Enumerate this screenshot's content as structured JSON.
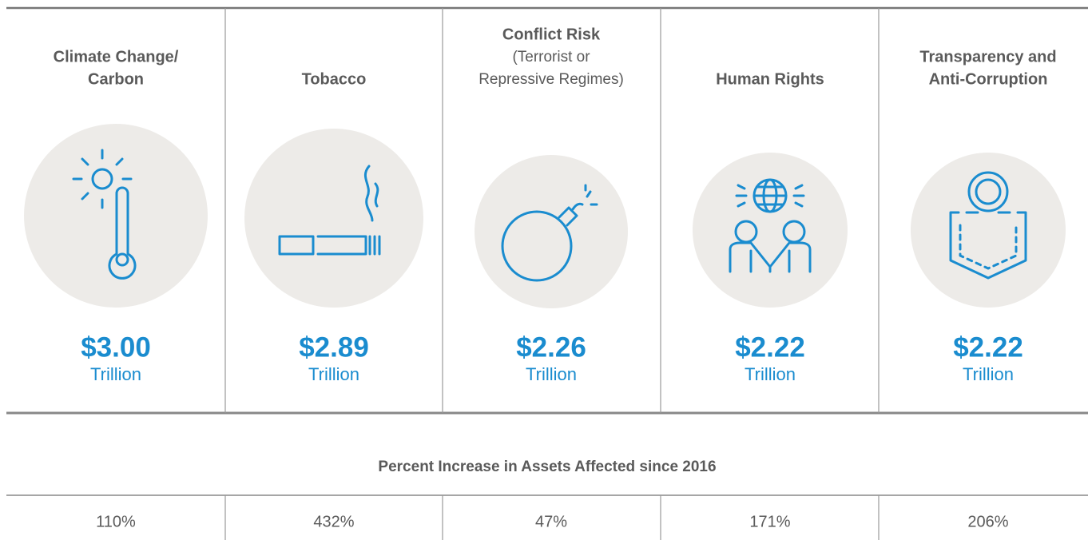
{
  "columns": [
    {
      "title": [
        "Climate Change/",
        "Carbon"
      ],
      "amount": "$3.00",
      "unit": "Trillion",
      "increase": "110%"
    },
    {
      "title": [
        "Tobacco"
      ],
      "amount": "$2.89",
      "unit": "Trillion",
      "increase": "432%"
    },
    {
      "title": [
        "Conflict Risk"
      ],
      "subtitle": [
        "(Terrorist or",
        "Repressive Regimes)"
      ],
      "amount": "$2.26",
      "unit": "Trillion",
      "increase": "47%"
    },
    {
      "title": [
        "Human Rights"
      ],
      "amount": "$2.22",
      "unit": "Trillion",
      "increase": "171%"
    },
    {
      "title": [
        "Transparency and",
        "Anti-Corruption"
      ],
      "amount": "$2.22",
      "unit": "Trillion",
      "increase": "206%"
    }
  ],
  "increase_heading": "Percent Increase in Assets Affected since 2016"
}
